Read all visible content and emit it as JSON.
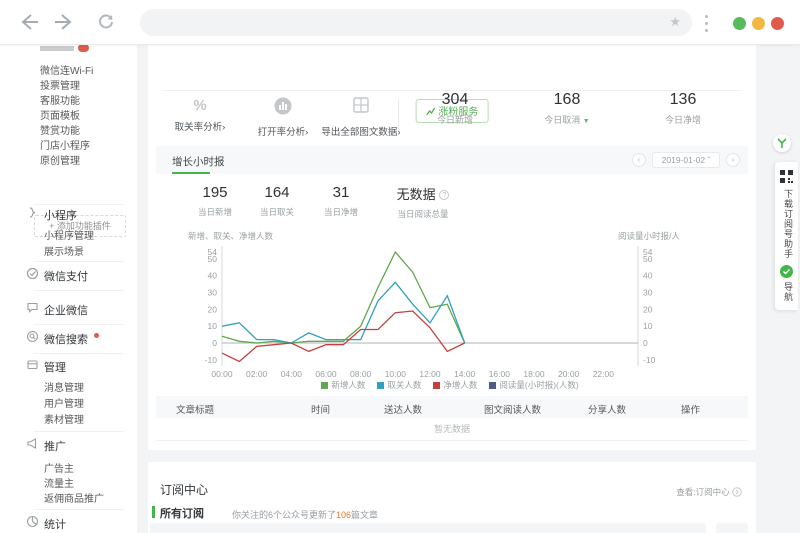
{
  "colors": {
    "accent_green": "#44b549",
    "traffic_green": "#57ba5c",
    "traffic_yellow": "#f2b844",
    "traffic_red": "#e05a4e",
    "highlight_orange": "#e8782e"
  },
  "sidebar": {
    "plugin_items": [
      "微信连Wi-Fi",
      "投票管理",
      "客服功能",
      "页面模板",
      "赞赏功能",
      "门店小程序",
      "原创管理"
    ],
    "add_plugin": {
      "plus": "+",
      "label": "添加功能插件"
    },
    "sections": [
      {
        "label": "小程序",
        "children": [
          "小程序管理",
          "展示场景"
        ]
      },
      {
        "label": "微信支付",
        "children": []
      },
      {
        "label": "企业微信",
        "children": []
      },
      {
        "label": "微信搜索",
        "children": []
      },
      {
        "label": "管理",
        "children": [
          "消息管理",
          "用户管理",
          "素材管理"
        ]
      },
      {
        "label": "推广",
        "children": [
          "广告主",
          "流量主",
          "返佣商品推广"
        ]
      },
      {
        "label": "统计",
        "children": []
      }
    ]
  },
  "toolbar": {
    "grow_button": "涨粉服务",
    "links": [
      "取关率分析",
      "打开率分析",
      "导出全部图文数据"
    ],
    "arrow": "›"
  },
  "today_stats": [
    {
      "value": "304",
      "label": "今日新增"
    },
    {
      "value": "168",
      "label": "今日取消"
    },
    {
      "value": "136",
      "label": "今日净增"
    }
  ],
  "growth": {
    "title": "增长小时报",
    "date": "2019-01-02",
    "prev": "‹",
    "next": "›",
    "caret": "ˆ",
    "day_stats": [
      {
        "value": "195",
        "label": "当日新增"
      },
      {
        "value": "164",
        "label": "当日取关"
      },
      {
        "value": "31",
        "label": "当日净增"
      },
      {
        "value": "无数据",
        "label": "当日阅读总量"
      }
    ],
    "help": "?"
  },
  "chart_data": {
    "type": "line",
    "title": "增长小时报",
    "hours_total": 24,
    "x_tick_labels": [
      "00:00",
      "02:00",
      "04:00",
      "06:00",
      "08:00",
      "10:00",
      "12:00",
      "14:00",
      "16:00",
      "18:00",
      "20:00",
      "22:00"
    ],
    "ylabel_left": "新增、取关、净增人数",
    "ylabel_right": "阅读量小时报/人",
    "yticks": [
      54,
      50,
      40,
      30,
      20,
      10,
      0,
      -10
    ],
    "ylim": [
      -10,
      54
    ],
    "grid": false,
    "legend_position": "bottom",
    "series": [
      {
        "name": "新增人数",
        "color": "#62a84f",
        "values": [
          4,
          1,
          0,
          1,
          0,
          1,
          1,
          1,
          10,
          33,
          54,
          42,
          21,
          23,
          0
        ]
      },
      {
        "name": "取关人数",
        "color": "#31a2bd",
        "values": [
          10,
          12,
          2,
          2,
          0,
          6,
          2,
          2,
          2,
          25,
          36,
          23,
          12,
          28,
          0
        ]
      },
      {
        "name": "净增人数",
        "color": "#c2413c",
        "values": [
          -6,
          -11,
          -2,
          -1,
          0,
          -5,
          -1,
          -1,
          8,
          8,
          18,
          19,
          9,
          -5,
          0
        ]
      },
      {
        "name": "阅读量(小时报)(人数)",
        "color": "#4f5c87",
        "values": []
      }
    ]
  },
  "table": {
    "headers": [
      "文章标题",
      "时间",
      "送达人数",
      "图文阅读人数",
      "分享人数",
      "操作"
    ],
    "empty": "暂无数据"
  },
  "subscription": {
    "title": "订阅中心",
    "view_link": "查看:订阅中心",
    "tab": "所有订阅",
    "desc_prefix": "你关注的6个公众号更新了",
    "desc_num": "106",
    "desc_suffix": "篇文章"
  },
  "side_tab": {
    "download": "下载订阅号助手",
    "nav": "导航"
  }
}
